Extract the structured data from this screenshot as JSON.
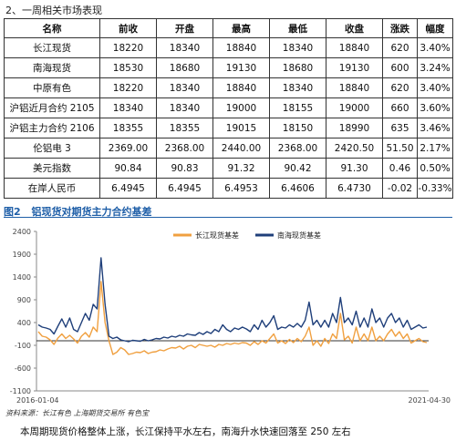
{
  "section_title": "2、一周相关市场表现",
  "table": {
    "headers": [
      "名称",
      "前收",
      "开盘",
      "最高",
      "最低",
      "收盘",
      "涨跌",
      "幅度"
    ],
    "rows": [
      [
        "长江现货",
        "18220",
        "18340",
        "18840",
        "18340",
        "18840",
        "620",
        "3.40%"
      ],
      [
        "南海现货",
        "18530",
        "18680",
        "19130",
        "18680",
        "19130",
        "600",
        "3.24%"
      ],
      [
        "中原有色",
        "18220",
        "18340",
        "18840",
        "18340",
        "18840",
        "620",
        "3.40%"
      ],
      [
        "沪铝近月合约 2105",
        "18340",
        "18340",
        "19000",
        "18155",
        "19000",
        "660",
        "3.60%"
      ],
      [
        "沪铝主力合约 2106",
        "18355",
        "18355",
        "19015",
        "18150",
        "18990",
        "635",
        "3.46%"
      ],
      [
        "伦铝电 3",
        "2369.00",
        "2368.00",
        "2440.00",
        "2368.00",
        "2420.50",
        "51.50",
        "2.17%"
      ],
      [
        "美元指数",
        "90.84",
        "90.83",
        "91.32",
        "90.42",
        "91.30",
        "0.46",
        "0.50%"
      ],
      [
        "在岸人民币",
        "6.4945",
        "6.4945",
        "6.4953",
        "6.4606",
        "6.4730",
        "-0.02",
        "-0.33%"
      ]
    ]
  },
  "figure": {
    "number": "图2",
    "title": "铝现货对期货主力合约基差"
  },
  "chart_data": {
    "type": "line",
    "x_start_label": "2016-01-04",
    "x_end_label": "2021-04-30",
    "yticks": [
      2400,
      1900,
      1400,
      900,
      400,
      -100,
      -600,
      -1100
    ],
    "ylim": [
      -1100,
      2400
    ],
    "zero_line": true,
    "legend_position": "top-center",
    "series": [
      {
        "name": "长江现货基差",
        "color": "#f0a040",
        "values": [
          200,
          100,
          80,
          20,
          -80,
          60,
          150,
          50,
          120,
          40,
          -50,
          100,
          180,
          80,
          300,
          200,
          1300,
          400,
          0,
          -300,
          -250,
          -150,
          -200,
          -300,
          -280,
          -250,
          -260,
          -220,
          -280,
          -250,
          -240,
          -200,
          -220,
          -180,
          -150,
          -160,
          -120,
          -180,
          -120,
          -100,
          -150,
          -80,
          -100,
          -120,
          -100,
          -140,
          -80,
          -100,
          -60,
          -80,
          -50,
          -70,
          -40,
          -50,
          -100,
          -20,
          -80,
          0,
          -50,
          50,
          150,
          -50,
          0,
          -60,
          30,
          -40,
          50,
          -20,
          100,
          300,
          -100,
          0,
          -120,
          50,
          -60,
          150,
          50,
          600,
          20,
          100,
          -50,
          300,
          0,
          150,
          0,
          300,
          0,
          100,
          0,
          150,
          250,
          100,
          200,
          50,
          150,
          -50,
          0,
          50,
          -20,
          -40
        ]
      },
      {
        "name": "南海现货基差",
        "color": "#1f3f7a",
        "values": [
          350,
          300,
          280,
          250,
          150,
          320,
          480,
          300,
          500,
          250,
          200,
          400,
          600,
          450,
          800,
          700,
          1820,
          800,
          100,
          50,
          80,
          20,
          0,
          -20,
          10,
          0,
          -10,
          30,
          0,
          20,
          50,
          40,
          80,
          60,
          100,
          80,
          120,
          100,
          150,
          130,
          120,
          180,
          140,
          200,
          160,
          250,
          200,
          350,
          250,
          200,
          280,
          250,
          300,
          260,
          200,
          350,
          250,
          450,
          300,
          400,
          550,
          250,
          300,
          280,
          350,
          300,
          380,
          300,
          450,
          850,
          350,
          450,
          300,
          450,
          300,
          600,
          400,
          950,
          400,
          500,
          350,
          650,
          300,
          500,
          300,
          700,
          400,
          500,
          300,
          500,
          600,
          400,
          500,
          300,
          450,
          250,
          300,
          350,
          280,
          300
        ]
      }
    ]
  },
  "source": "资料来源：长江有色  上海期货交易所  有色宝",
  "summary": "本周期现货价格整体上涨，长江保持平水左右，南海升水快速回落至 250 左右"
}
